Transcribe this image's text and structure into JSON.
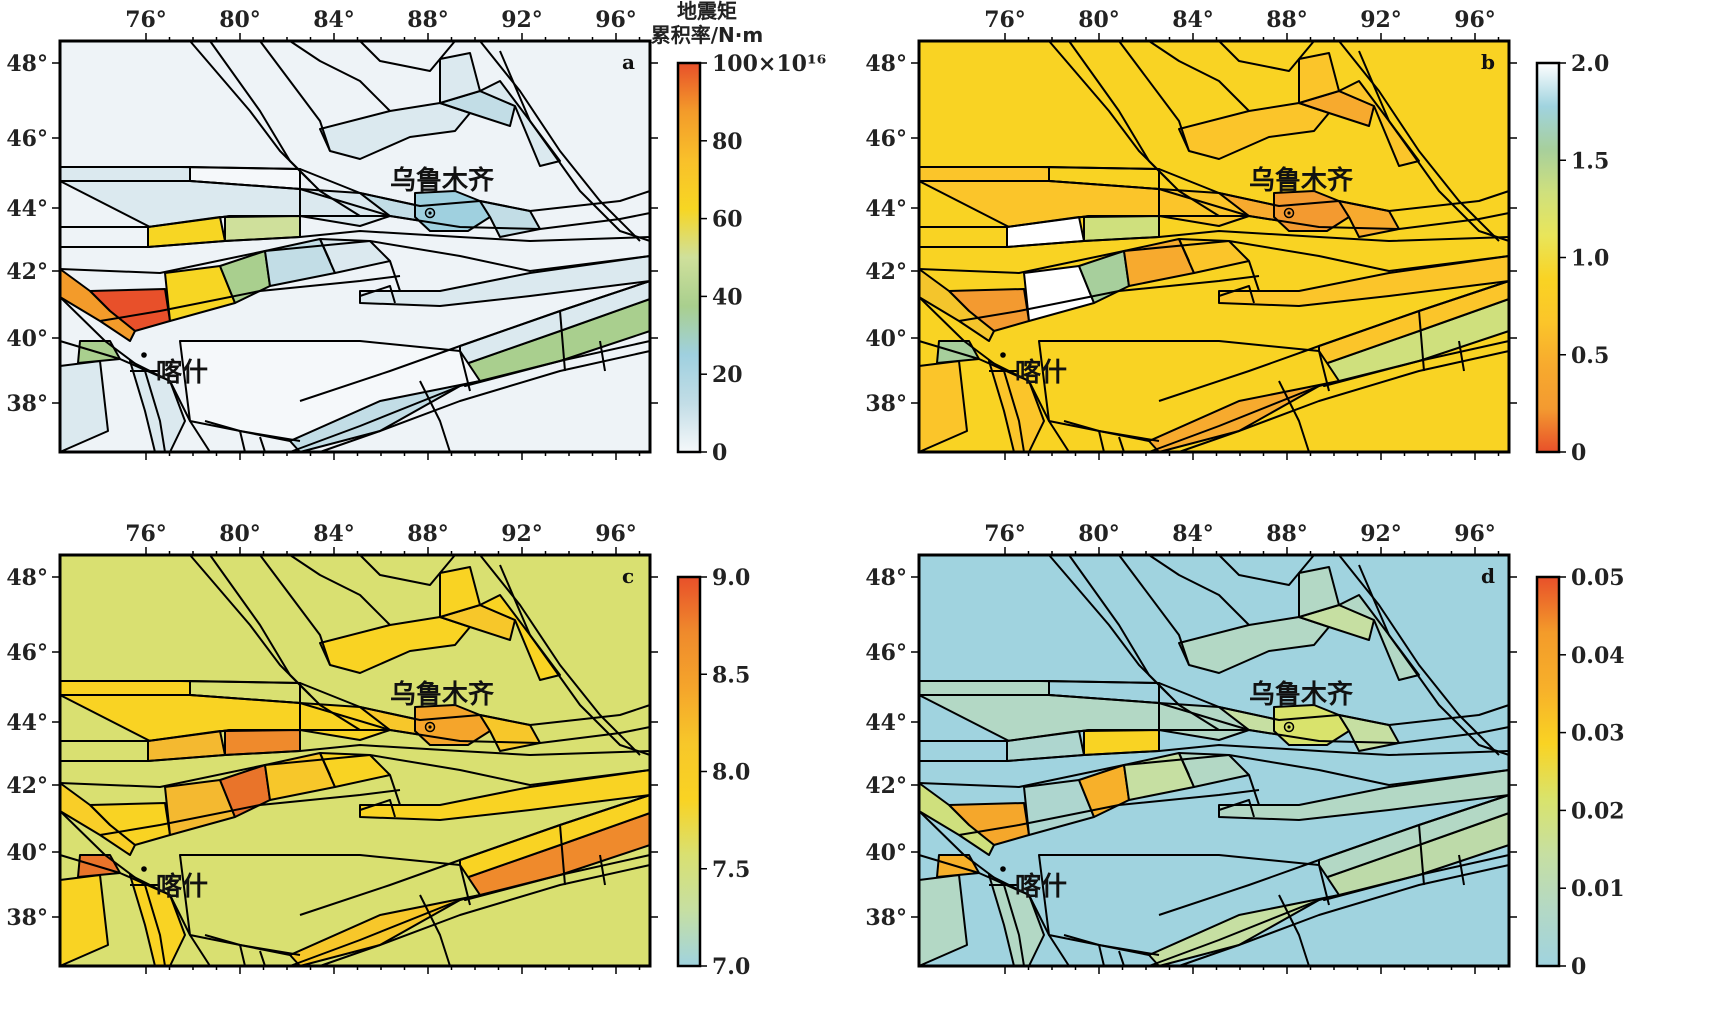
{
  "map": {
    "lon_labels": [
      "76°",
      "80°",
      "84°",
      "88°",
      "92°",
      "96°"
    ],
    "lat_labels": [
      "48°",
      "46°",
      "44°",
      "42°",
      "40°",
      "38°"
    ],
    "cities": {
      "urumqi": "乌鲁木齐",
      "kashgar": "喀什"
    }
  },
  "panels": [
    {
      "letter": "a",
      "colorbar_title_line1": "地震矩",
      "colorbar_title_line2": "累积率/N·m",
      "colorbar_ticks": [
        "100×10¹⁶",
        "80",
        "60",
        "40",
        "20",
        "0"
      ],
      "background_color": "#eef3f7",
      "palette": [
        "#f5f8fa",
        "#dbe9ef",
        "#c2dde6",
        "#9fd0df",
        "#cfe09b",
        "#a9cf8e",
        "#f7d623",
        "#f9c02a",
        "#f39b2a",
        "#e8502a"
      ],
      "highlight_blocks": {
        "kashgar_sw": "#e8502a",
        "south_tarim": "#f5f8fa",
        "east_belt": "#a9cf8e",
        "junggar_strip": "#dbe9ef"
      }
    },
    {
      "letter": "b",
      "colorbar_title_line1": "",
      "colorbar_title_line2": "",
      "colorbar_ticks": [
        "2.0",
        "1.5",
        "1.0",
        "0.5",
        "0"
      ],
      "background_color": "#f9d323",
      "palette": [
        "#f9d323",
        "#fbc52a",
        "#f7aa2e",
        "#f39a30",
        "#cfe07d",
        "#a7cf9c",
        "#ffffff",
        "#e9e55a",
        "#f4c52c",
        "#f7b02a"
      ],
      "highlight_blocks": {
        "kashgar_sw": "#f39a30",
        "south_tarim": "#fbc52a",
        "east_belt": "#cfe07d",
        "junggar_strip": "#ffffff"
      }
    },
    {
      "letter": "c",
      "colorbar_title_line1": "",
      "colorbar_title_line2": "",
      "colorbar_ticks": [
        "9.0",
        "8.5",
        "8.0",
        "7.5",
        "7.0"
      ],
      "background_color": "#d9e071",
      "palette": [
        "#d9e071",
        "#f9d323",
        "#f7c72a",
        "#f5a52b",
        "#ef8a2c",
        "#e9742a",
        "#f4b930",
        "#fbd22a",
        "#f9ce28",
        "#ec7d2c"
      ],
      "highlight_blocks": {
        "kashgar_sw": "#f9d323",
        "south_tarim": "#d9e071",
        "east_belt": "#ef8a2c",
        "junggar_strip": "#f5a52b"
      }
    },
    {
      "letter": "d",
      "colorbar_title_line1": "",
      "colorbar_title_line2": "",
      "colorbar_ticks": [
        "0.05",
        "0.04",
        "0.03",
        "0.02",
        "0.01",
        "0"
      ],
      "background_color": "#a0d3df",
      "palette": [
        "#a0d3df",
        "#b3d8c5",
        "#c6dfa2",
        "#d9e36c",
        "#f9d323",
        "#f7b02a",
        "#aed6cf",
        "#bddaa9",
        "#cfe07d",
        "#f5a72b"
      ],
      "highlight_blocks": {
        "kashgar_sw": "#f5a72b",
        "south_tarim": "#a0d3df",
        "east_belt": "#bddaa9",
        "junggar_strip": "#a0d3df"
      }
    }
  ]
}
